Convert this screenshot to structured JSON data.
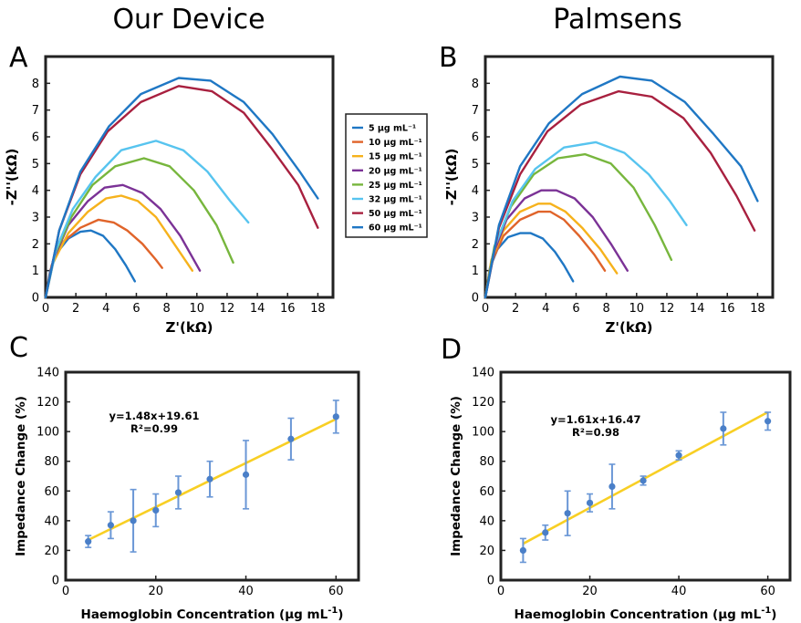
{
  "headers": {
    "left": "Our Device",
    "right": "Palmsens"
  },
  "panel_letters": [
    "A",
    "B",
    "C",
    "D"
  ],
  "colors": {
    "5": "#1f77c4",
    "10": "#e0642a",
    "15": "#f6b21c",
    "20": "#7b3296",
    "25": "#77b63d",
    "32": "#57c4ef",
    "50": "#a8203f",
    "60": "#1f77c4",
    "fit": "#f8cf24",
    "points": "#4a7fc8",
    "errbar": "#6a97d6"
  },
  "legend": {
    "entries": [
      {
        "key": "5",
        "label": "5 μg mL⁻¹"
      },
      {
        "key": "10",
        "label": "10 μg mL⁻¹"
      },
      {
        "key": "15",
        "label": "15 μg mL⁻¹"
      },
      {
        "key": "20",
        "label": "20 μg mL⁻¹"
      },
      {
        "key": "25",
        "label": "25 μg mL⁻¹"
      },
      {
        "key": "32",
        "label": "32 μg mL⁻¹"
      },
      {
        "key": "50",
        "label": "50 μg mL⁻¹"
      },
      {
        "key": "60",
        "label": "60 μg mL⁻¹"
      }
    ]
  },
  "chart_data": [
    {
      "panel": "A",
      "type": "line",
      "xlabel": "Z'(kΩ)",
      "ylabel": "-Z''(kΩ)",
      "xlim": [
        0,
        19
      ],
      "ylim": [
        0,
        9
      ],
      "xticks": [
        0,
        2,
        4,
        6,
        8,
        10,
        12,
        14,
        16,
        18
      ],
      "yticks": [
        0,
        1,
        2,
        3,
        4,
        5,
        6,
        7,
        8
      ],
      "series": [
        {
          "key": "5",
          "x": [
            0.0,
            0.3,
            0.8,
            1.5,
            2.3,
            3.0,
            3.8,
            4.6,
            5.3,
            5.9
          ],
          "y": [
            0.0,
            1.0,
            1.7,
            2.2,
            2.45,
            2.5,
            2.3,
            1.8,
            1.2,
            0.6
          ]
        },
        {
          "key": "10",
          "x": [
            0.0,
            0.4,
            1.2,
            2.3,
            3.5,
            4.5,
            5.4,
            6.4,
            7.3,
            7.7
          ],
          "y": [
            0.0,
            1.2,
            2.1,
            2.6,
            2.9,
            2.8,
            2.5,
            2.0,
            1.4,
            1.1
          ]
        },
        {
          "key": "15",
          "x": [
            0.0,
            0.5,
            1.5,
            2.8,
            4.0,
            5.0,
            6.1,
            7.3,
            8.5,
            9.7
          ],
          "y": [
            0.0,
            1.3,
            2.4,
            3.2,
            3.7,
            3.8,
            3.6,
            3.0,
            2.0,
            1.0
          ]
        },
        {
          "key": "20",
          "x": [
            0.0,
            0.5,
            1.5,
            2.8,
            3.9,
            5.1,
            6.4,
            7.6,
            8.9,
            10.2
          ],
          "y": [
            0.0,
            1.4,
            2.7,
            3.6,
            4.1,
            4.2,
            3.9,
            3.3,
            2.3,
            1.0
          ]
        },
        {
          "key": "25",
          "x": [
            0.0,
            0.6,
            1.7,
            3.1,
            4.6,
            6.5,
            8.2,
            9.8,
            11.3,
            12.4
          ],
          "y": [
            0.0,
            1.6,
            3.0,
            4.2,
            4.9,
            5.2,
            4.9,
            4.0,
            2.7,
            1.3
          ]
        },
        {
          "key": "32",
          "x": [
            0.0,
            0.7,
            1.8,
            3.3,
            5.0,
            7.3,
            9.1,
            10.7,
            12.2,
            13.4
          ],
          "y": [
            0.0,
            1.8,
            3.3,
            4.5,
            5.5,
            5.85,
            5.5,
            4.7,
            3.6,
            2.8
          ]
        },
        {
          "key": "50",
          "x": [
            0.0,
            0.9,
            2.3,
            4.1,
            6.3,
            8.8,
            11.0,
            13.1,
            14.9,
            16.7,
            18.0
          ],
          "y": [
            0.0,
            2.5,
            4.6,
            6.2,
            7.3,
            7.9,
            7.7,
            6.9,
            5.6,
            4.2,
            2.6
          ]
        },
        {
          "key": "60",
          "x": [
            0.0,
            0.9,
            2.3,
            4.2,
            6.3,
            8.8,
            10.9,
            13.1,
            15.0,
            16.8,
            18.0
          ],
          "y": [
            0.0,
            2.5,
            4.7,
            6.4,
            7.6,
            8.2,
            8.1,
            7.3,
            6.1,
            4.7,
            3.7
          ]
        }
      ]
    },
    {
      "panel": "B",
      "type": "line",
      "xlabel": "Z'(kΩ)",
      "ylabel": "-Z''(kΩ)",
      "xlim": [
        0,
        19
      ],
      "ylim": [
        0,
        9
      ],
      "xticks": [
        0,
        2,
        4,
        6,
        8,
        10,
        12,
        14,
        16,
        18
      ],
      "yticks": [
        0,
        1,
        2,
        3,
        4,
        5,
        6,
        7,
        8
      ],
      "series": [
        {
          "key": "5",
          "x": [
            0.0,
            0.3,
            0.8,
            1.5,
            2.3,
            3.0,
            3.8,
            4.6,
            5.2,
            5.8
          ],
          "y": [
            0.0,
            1.1,
            1.8,
            2.25,
            2.4,
            2.4,
            2.2,
            1.7,
            1.2,
            0.6
          ]
        },
        {
          "key": "10",
          "x": [
            0.0,
            0.4,
            1.2,
            2.3,
            3.5,
            4.3,
            5.2,
            6.2,
            7.2,
            7.9
          ],
          "y": [
            0.0,
            1.3,
            2.3,
            2.9,
            3.2,
            3.2,
            2.9,
            2.3,
            1.6,
            1.0
          ]
        },
        {
          "key": "15",
          "x": [
            0.0,
            0.4,
            1.2,
            2.3,
            3.5,
            4.3,
            5.3,
            6.4,
            7.6,
            8.7
          ],
          "y": [
            0.0,
            1.4,
            2.5,
            3.2,
            3.5,
            3.5,
            3.2,
            2.6,
            1.8,
            0.9
          ]
        },
        {
          "key": "20",
          "x": [
            0.0,
            0.5,
            1.4,
            2.6,
            3.7,
            4.7,
            5.9,
            7.1,
            8.3,
            9.4
          ],
          "y": [
            0.0,
            1.6,
            2.9,
            3.7,
            4.0,
            4.0,
            3.7,
            3.0,
            2.0,
            1.0
          ]
        },
        {
          "key": "25",
          "x": [
            0.0,
            0.6,
            1.7,
            3.2,
            4.8,
            6.6,
            8.3,
            9.8,
            11.2,
            12.3
          ],
          "y": [
            0.0,
            1.9,
            3.4,
            4.6,
            5.2,
            5.35,
            5.0,
            4.1,
            2.7,
            1.4
          ]
        },
        {
          "key": "32",
          "x": [
            0.0,
            0.7,
            1.8,
            3.3,
            5.2,
            7.3,
            9.2,
            10.8,
            12.2,
            13.3
          ],
          "y": [
            0.0,
            2.0,
            3.6,
            4.8,
            5.6,
            5.8,
            5.4,
            4.6,
            3.6,
            2.7
          ]
        },
        {
          "key": "50",
          "x": [
            0.0,
            0.9,
            2.3,
            4.1,
            6.3,
            8.8,
            11.0,
            13.1,
            14.9,
            16.6,
            17.8
          ],
          "y": [
            0.0,
            2.6,
            4.6,
            6.2,
            7.2,
            7.7,
            7.5,
            6.7,
            5.4,
            3.8,
            2.5
          ]
        },
        {
          "key": "60",
          "x": [
            0.0,
            0.9,
            2.3,
            4.2,
            6.4,
            8.9,
            11.0,
            13.2,
            15.1,
            16.9,
            18.0
          ],
          "y": [
            0.0,
            2.7,
            4.9,
            6.5,
            7.6,
            8.25,
            8.1,
            7.3,
            6.1,
            4.9,
            3.6
          ]
        }
      ]
    },
    {
      "panel": "C",
      "type": "scatter",
      "xlabel": "Haemoglobin Concentration (μg mL",
      "xlabel_sup": "-1",
      "xlabel_end": ")",
      "ylabel": "Impedance Change (%)",
      "xlim": [
        0,
        65
      ],
      "ylim": [
        0,
        140
      ],
      "xticks": [
        0,
        20,
        40,
        60
      ],
      "yticks": [
        0,
        20,
        40,
        60,
        80,
        100,
        120,
        140
      ],
      "equation": "y=1.48x+19.61",
      "r2": "R²=0.99",
      "fit": {
        "slope": 1.48,
        "intercept": 19.61,
        "x_range": [
          5,
          60
        ]
      },
      "points": [
        {
          "x": 5,
          "y": 26,
          "err": 4
        },
        {
          "x": 10,
          "y": 37,
          "err": 9
        },
        {
          "x": 15,
          "y": 40,
          "err": 21
        },
        {
          "x": 20,
          "y": 47,
          "err": 11
        },
        {
          "x": 25,
          "y": 59,
          "err": 11
        },
        {
          "x": 32,
          "y": 68,
          "err": 12
        },
        {
          "x": 40,
          "y": 71,
          "err": 23
        },
        {
          "x": 50,
          "y": 95,
          "err": 14
        },
        {
          "x": 60,
          "y": 110,
          "err": 11
        }
      ]
    },
    {
      "panel": "D",
      "type": "scatter",
      "xlabel": "Haemoglobin Concentration (μg mL",
      "xlabel_sup": "-1",
      "xlabel_end": ")",
      "ylabel": "Impedance Change (%)",
      "xlim": [
        0,
        65
      ],
      "ylim": [
        0,
        140
      ],
      "xticks": [
        0,
        20,
        40,
        60
      ],
      "yticks": [
        0,
        20,
        40,
        60,
        80,
        100,
        120,
        140
      ],
      "equation": "y=1.61x+16.47",
      "r2": "R²=0.98",
      "fit": {
        "slope": 1.61,
        "intercept": 16.47,
        "x_range": [
          5,
          60
        ]
      },
      "points": [
        {
          "x": 5,
          "y": 20,
          "err": 8
        },
        {
          "x": 10,
          "y": 32,
          "err": 5
        },
        {
          "x": 15,
          "y": 45,
          "err": 15
        },
        {
          "x": 20,
          "y": 52,
          "err": 6
        },
        {
          "x": 25,
          "y": 63,
          "err": 15
        },
        {
          "x": 32,
          "y": 67,
          "err": 3
        },
        {
          "x": 40,
          "y": 84,
          "err": 3
        },
        {
          "x": 50,
          "y": 102,
          "err": 11
        },
        {
          "x": 60,
          "y": 107,
          "err": 6
        }
      ]
    }
  ]
}
